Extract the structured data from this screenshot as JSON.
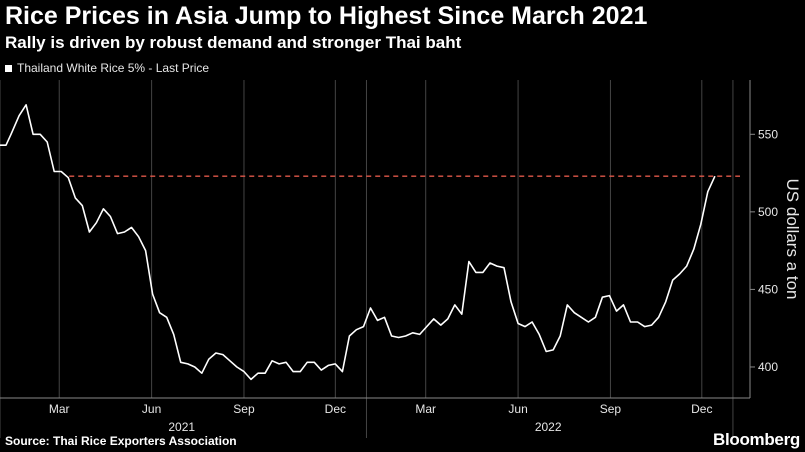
{
  "header": {
    "title": "Rice Prices in Asia Jump to Highest Since March 2021",
    "subtitle": "Rally is driven by robust demand and stronger Thai baht"
  },
  "legend": {
    "label": "Thailand White Rice 5% - Last Price"
  },
  "footer": {
    "source": "Source: Thai Rice Exporters Association",
    "brand": "Bloomberg"
  },
  "colors": {
    "background": "#000000",
    "line": "#ffffff",
    "reference_line": "#e0584a",
    "grid": "#444444"
  },
  "chart_data": {
    "type": "line",
    "title": "Rice Prices in Asia Jump to Highest Since March 2021",
    "subtitle": "Rally is driven by robust demand and stronger Thai baht",
    "ylabel": "US dollars a ton",
    "y_axis_side": "right",
    "ylim": [
      380,
      585
    ],
    "yticks": [
      400,
      450,
      500,
      550
    ],
    "xlim": [
      "2021-01-01",
      "2023-01-18"
    ],
    "xticks": [
      {
        "date": "2021-03-01",
        "label": "Mar"
      },
      {
        "date": "2021-06-01",
        "label": "Jun"
      },
      {
        "date": "2021-09-01",
        "label": "Sep"
      },
      {
        "date": "2021-12-01",
        "label": "Dec"
      },
      {
        "date": "2022-03-01",
        "label": "Mar"
      },
      {
        "date": "2022-06-01",
        "label": "Jun"
      },
      {
        "date": "2022-09-01",
        "label": "Sep"
      },
      {
        "date": "2022-12-01",
        "label": "Dec"
      }
    ],
    "year_labels": [
      {
        "label": "2021",
        "date": "2021-07-01"
      },
      {
        "label": "2022",
        "date": "2022-07-01"
      }
    ],
    "year_dividers": [
      "2021-01-01",
      "2022-01-01",
      "2023-01-01"
    ],
    "grid": {
      "vertical": true,
      "horizontal": false
    },
    "legend_position": "top-left",
    "reference_line": {
      "y": 523,
      "style": "dashed"
    },
    "series": [
      {
        "name": "Thailand White Rice 5% - Last Price",
        "points": [
          [
            "2021-01-01",
            543
          ],
          [
            "2021-01-07",
            543
          ],
          [
            "2021-01-12",
            550
          ],
          [
            "2021-01-20",
            562
          ],
          [
            "2021-01-27",
            569
          ],
          [
            "2021-02-03",
            550
          ],
          [
            "2021-02-10",
            550
          ],
          [
            "2021-02-17",
            545
          ],
          [
            "2021-02-24",
            526
          ],
          [
            "2021-03-03",
            526
          ],
          [
            "2021-03-10",
            522
          ],
          [
            "2021-03-17",
            509
          ],
          [
            "2021-03-24",
            504
          ],
          [
            "2021-03-31",
            487
          ],
          [
            "2021-04-07",
            493
          ],
          [
            "2021-04-14",
            502
          ],
          [
            "2021-04-21",
            497
          ],
          [
            "2021-04-28",
            486
          ],
          [
            "2021-05-05",
            487
          ],
          [
            "2021-05-12",
            490
          ],
          [
            "2021-05-19",
            484
          ],
          [
            "2021-05-26",
            475
          ],
          [
            "2021-06-02",
            447
          ],
          [
            "2021-06-09",
            435
          ],
          [
            "2021-06-16",
            432
          ],
          [
            "2021-06-23",
            421
          ],
          [
            "2021-06-30",
            403
          ],
          [
            "2021-07-07",
            402
          ],
          [
            "2021-07-14",
            400
          ],
          [
            "2021-07-21",
            396
          ],
          [
            "2021-07-28",
            405
          ],
          [
            "2021-08-04",
            409
          ],
          [
            "2021-08-11",
            408
          ],
          [
            "2021-08-18",
            404
          ],
          [
            "2021-08-25",
            400
          ],
          [
            "2021-09-01",
            397
          ],
          [
            "2021-09-08",
            392
          ],
          [
            "2021-09-15",
            396
          ],
          [
            "2021-09-22",
            396
          ],
          [
            "2021-09-29",
            404
          ],
          [
            "2021-10-06",
            402
          ],
          [
            "2021-10-13",
            403
          ],
          [
            "2021-10-20",
            397
          ],
          [
            "2021-10-27",
            397
          ],
          [
            "2021-11-03",
            403
          ],
          [
            "2021-11-10",
            403
          ],
          [
            "2021-11-17",
            398
          ],
          [
            "2021-11-24",
            401
          ],
          [
            "2021-12-01",
            402
          ],
          [
            "2021-12-08",
            397
          ],
          [
            "2021-12-15",
            420
          ],
          [
            "2021-12-22",
            424
          ],
          [
            "2021-12-29",
            426
          ],
          [
            "2022-01-05",
            438
          ],
          [
            "2022-01-12",
            430
          ],
          [
            "2022-01-19",
            432
          ],
          [
            "2022-01-26",
            420
          ],
          [
            "2022-02-02",
            419
          ],
          [
            "2022-02-09",
            420
          ],
          [
            "2022-02-16",
            422
          ],
          [
            "2022-02-23",
            421
          ],
          [
            "2022-03-02",
            426
          ],
          [
            "2022-03-09",
            431
          ],
          [
            "2022-03-16",
            427
          ],
          [
            "2022-03-23",
            431
          ],
          [
            "2022-03-30",
            440
          ],
          [
            "2022-04-06",
            434
          ],
          [
            "2022-04-13",
            468
          ],
          [
            "2022-04-20",
            461
          ],
          [
            "2022-04-27",
            461
          ],
          [
            "2022-05-04",
            467
          ],
          [
            "2022-05-11",
            465
          ],
          [
            "2022-05-18",
            464
          ],
          [
            "2022-05-25",
            442
          ],
          [
            "2022-06-01",
            428
          ],
          [
            "2022-06-08",
            426
          ],
          [
            "2022-06-15",
            429
          ],
          [
            "2022-06-22",
            421
          ],
          [
            "2022-06-29",
            410
          ],
          [
            "2022-07-06",
            411
          ],
          [
            "2022-07-13",
            420
          ],
          [
            "2022-07-20",
            440
          ],
          [
            "2022-07-27",
            435
          ],
          [
            "2022-08-03",
            432
          ],
          [
            "2022-08-10",
            429
          ],
          [
            "2022-08-17",
            432
          ],
          [
            "2022-08-24",
            445
          ],
          [
            "2022-08-31",
            446
          ],
          [
            "2022-09-07",
            436
          ],
          [
            "2022-09-14",
            440
          ],
          [
            "2022-09-21",
            429
          ],
          [
            "2022-09-28",
            429
          ],
          [
            "2022-10-05",
            426
          ],
          [
            "2022-10-12",
            427
          ],
          [
            "2022-10-19",
            432
          ],
          [
            "2022-10-26",
            442
          ],
          [
            "2022-11-02",
            456
          ],
          [
            "2022-11-09",
            460
          ],
          [
            "2022-11-16",
            465
          ],
          [
            "2022-11-23",
            476
          ],
          [
            "2022-11-30",
            492
          ],
          [
            "2022-12-07",
            513
          ],
          [
            "2022-12-14",
            523
          ]
        ]
      }
    ]
  }
}
